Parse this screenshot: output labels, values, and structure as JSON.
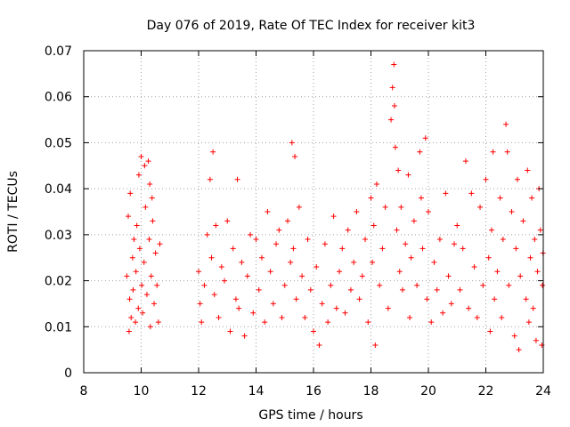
{
  "chart_data": {
    "type": "scatter",
    "title": "Day 076 of 2019, Rate Of TEC Index for receiver kit3",
    "xlabel": "GPS time / hours",
    "ylabel": "ROTI / TECUs",
    "xlim": [
      8,
      24
    ],
    "ylim": [
      0,
      0.07
    ],
    "xticks": [
      8,
      10,
      12,
      14,
      16,
      18,
      20,
      22,
      24
    ],
    "xtick_labels": [
      "8",
      "10",
      "12",
      "14",
      "16",
      "18",
      "20",
      "22",
      "24"
    ],
    "yticks": [
      0,
      0.01,
      0.02,
      0.03,
      0.04,
      0.05,
      0.06,
      0.07
    ],
    "ytick_labels": [
      "0",
      "0.01",
      "0.02",
      "0.03",
      "0.04",
      "0.05",
      "0.06",
      "0.07"
    ],
    "grid": true,
    "marker": "+",
    "marker_color": "#ff0000",
    "series": [
      {
        "name": "ROTI",
        "points": [
          [
            9.5,
            0.021
          ],
          [
            9.55,
            0.034
          ],
          [
            9.6,
            0.016
          ],
          [
            9.62,
            0.039
          ],
          [
            9.65,
            0.012
          ],
          [
            9.7,
            0.025
          ],
          [
            9.72,
            0.018
          ],
          [
            9.75,
            0.029
          ],
          [
            9.8,
            0.011
          ],
          [
            9.82,
            0.022
          ],
          [
            9.85,
            0.032
          ],
          [
            9.9,
            0.014
          ],
          [
            9.92,
            0.043
          ],
          [
            9.95,
            0.027
          ],
          [
            10.0,
            0.047
          ],
          [
            10.02,
            0.019
          ],
          [
            10.05,
            0.013
          ],
          [
            10.1,
            0.024
          ],
          [
            10.15,
            0.036
          ],
          [
            10.2,
            0.017
          ],
          [
            10.25,
            0.046
          ],
          [
            10.28,
            0.029
          ],
          [
            10.3,
            0.041
          ],
          [
            10.32,
            0.01
          ],
          [
            10.35,
            0.021
          ],
          [
            10.4,
            0.033
          ],
          [
            10.45,
            0.015
          ],
          [
            10.5,
            0.026
          ],
          [
            10.55,
            0.019
          ],
          [
            10.6,
            0.011
          ],
          [
            10.65,
            0.028
          ],
          [
            9.58,
            0.009
          ],
          [
            10.12,
            0.045
          ],
          [
            10.38,
            0.038
          ],
          [
            12.0,
            0.022
          ],
          [
            12.05,
            0.015
          ],
          [
            12.1,
            0.011
          ],
          [
            12.2,
            0.019
          ],
          [
            12.3,
            0.03
          ],
          [
            12.4,
            0.042
          ],
          [
            12.45,
            0.025
          ],
          [
            12.5,
            0.048
          ],
          [
            12.55,
            0.017
          ],
          [
            12.6,
            0.032
          ],
          [
            12.7,
            0.012
          ],
          [
            12.8,
            0.023
          ],
          [
            12.9,
            0.02
          ],
          [
            13.0,
            0.033
          ],
          [
            13.1,
            0.009
          ],
          [
            13.2,
            0.027
          ],
          [
            13.3,
            0.016
          ],
          [
            13.35,
            0.042
          ],
          [
            13.4,
            0.014
          ],
          [
            13.5,
            0.024
          ],
          [
            13.6,
            0.008
          ],
          [
            13.7,
            0.021
          ],
          [
            13.8,
            0.03
          ],
          [
            13.9,
            0.013
          ],
          [
            14.0,
            0.029
          ],
          [
            14.1,
            0.018
          ],
          [
            14.2,
            0.025
          ],
          [
            14.3,
            0.011
          ],
          [
            14.4,
            0.035
          ],
          [
            14.5,
            0.022
          ],
          [
            14.6,
            0.015
          ],
          [
            14.7,
            0.028
          ],
          [
            14.8,
            0.031
          ],
          [
            14.9,
            0.012
          ],
          [
            15.0,
            0.019
          ],
          [
            15.1,
            0.033
          ],
          [
            15.2,
            0.024
          ],
          [
            15.25,
            0.05
          ],
          [
            15.3,
            0.027
          ],
          [
            15.35,
            0.047
          ],
          [
            15.4,
            0.016
          ],
          [
            15.5,
            0.036
          ],
          [
            15.6,
            0.021
          ],
          [
            15.7,
            0.012
          ],
          [
            15.8,
            0.029
          ],
          [
            15.9,
            0.018
          ],
          [
            16.0,
            0.009
          ],
          [
            16.1,
            0.023
          ],
          [
            16.2,
            0.006
          ],
          [
            16.3,
            0.015
          ],
          [
            16.4,
            0.028
          ],
          [
            16.5,
            0.011
          ],
          [
            16.6,
            0.019
          ],
          [
            16.7,
            0.034
          ],
          [
            16.8,
            0.014
          ],
          [
            16.9,
            0.022
          ],
          [
            17.0,
            0.027
          ],
          [
            17.1,
            0.013
          ],
          [
            17.2,
            0.031
          ],
          [
            17.3,
            0.018
          ],
          [
            17.4,
            0.024
          ],
          [
            17.5,
            0.035
          ],
          [
            17.6,
            0.016
          ],
          [
            17.7,
            0.021
          ],
          [
            17.8,
            0.029
          ],
          [
            17.9,
            0.011
          ],
          [
            18.0,
            0.038
          ],
          [
            18.05,
            0.024
          ],
          [
            18.1,
            0.032
          ],
          [
            18.15,
            0.006
          ],
          [
            18.2,
            0.041
          ],
          [
            18.3,
            0.019
          ],
          [
            18.4,
            0.027
          ],
          [
            18.5,
            0.036
          ],
          [
            18.6,
            0.014
          ],
          [
            18.7,
            0.055
          ],
          [
            18.75,
            0.062
          ],
          [
            18.8,
            0.067
          ],
          [
            18.82,
            0.058
          ],
          [
            18.85,
            0.049
          ],
          [
            18.9,
            0.031
          ],
          [
            18.95,
            0.044
          ],
          [
            19.0,
            0.022
          ],
          [
            19.05,
            0.036
          ],
          [
            19.1,
            0.018
          ],
          [
            19.2,
            0.028
          ],
          [
            19.3,
            0.043
          ],
          [
            19.35,
            0.012
          ],
          [
            19.4,
            0.025
          ],
          [
            19.5,
            0.033
          ],
          [
            19.6,
            0.019
          ],
          [
            19.7,
            0.048
          ],
          [
            19.75,
            0.038
          ],
          [
            19.8,
            0.027
          ],
          [
            19.9,
            0.051
          ],
          [
            19.95,
            0.016
          ],
          [
            20.0,
            0.035
          ],
          [
            20.1,
            0.011
          ],
          [
            20.2,
            0.024
          ],
          [
            20.3,
            0.018
          ],
          [
            20.4,
            0.029
          ],
          [
            20.5,
            0.013
          ],
          [
            20.6,
            0.039
          ],
          [
            20.7,
            0.021
          ],
          [
            20.8,
            0.015
          ],
          [
            20.9,
            0.028
          ],
          [
            21.0,
            0.032
          ],
          [
            21.1,
            0.018
          ],
          [
            21.2,
            0.027
          ],
          [
            21.3,
            0.046
          ],
          [
            21.4,
            0.014
          ],
          [
            21.5,
            0.039
          ],
          [
            21.6,
            0.023
          ],
          [
            21.7,
            0.012
          ],
          [
            21.8,
            0.036
          ],
          [
            21.9,
            0.019
          ],
          [
            22.0,
            0.042
          ],
          [
            22.1,
            0.025
          ],
          [
            22.15,
            0.009
          ],
          [
            22.2,
            0.031
          ],
          [
            22.25,
            0.048
          ],
          [
            22.3,
            0.016
          ],
          [
            22.4,
            0.022
          ],
          [
            22.5,
            0.038
          ],
          [
            22.55,
            0.012
          ],
          [
            22.6,
            0.029
          ],
          [
            22.7,
            0.054
          ],
          [
            22.75,
            0.048
          ],
          [
            22.8,
            0.019
          ],
          [
            22.9,
            0.035
          ],
          [
            23.0,
            0.008
          ],
          [
            23.05,
            0.027
          ],
          [
            23.1,
            0.042
          ],
          [
            23.15,
            0.005
          ],
          [
            23.2,
            0.021
          ],
          [
            23.3,
            0.033
          ],
          [
            23.4,
            0.016
          ],
          [
            23.45,
            0.044
          ],
          [
            23.5,
            0.011
          ],
          [
            23.55,
            0.025
          ],
          [
            23.6,
            0.038
          ],
          [
            23.65,
            0.014
          ],
          [
            23.7,
            0.029
          ],
          [
            23.75,
            0.007
          ],
          [
            23.8,
            0.022
          ],
          [
            23.85,
            0.04
          ],
          [
            23.9,
            0.031
          ],
          [
            23.95,
            0.006
          ],
          [
            23.97,
            0.019
          ],
          [
            23.99,
            0.026
          ]
        ]
      }
    ]
  }
}
